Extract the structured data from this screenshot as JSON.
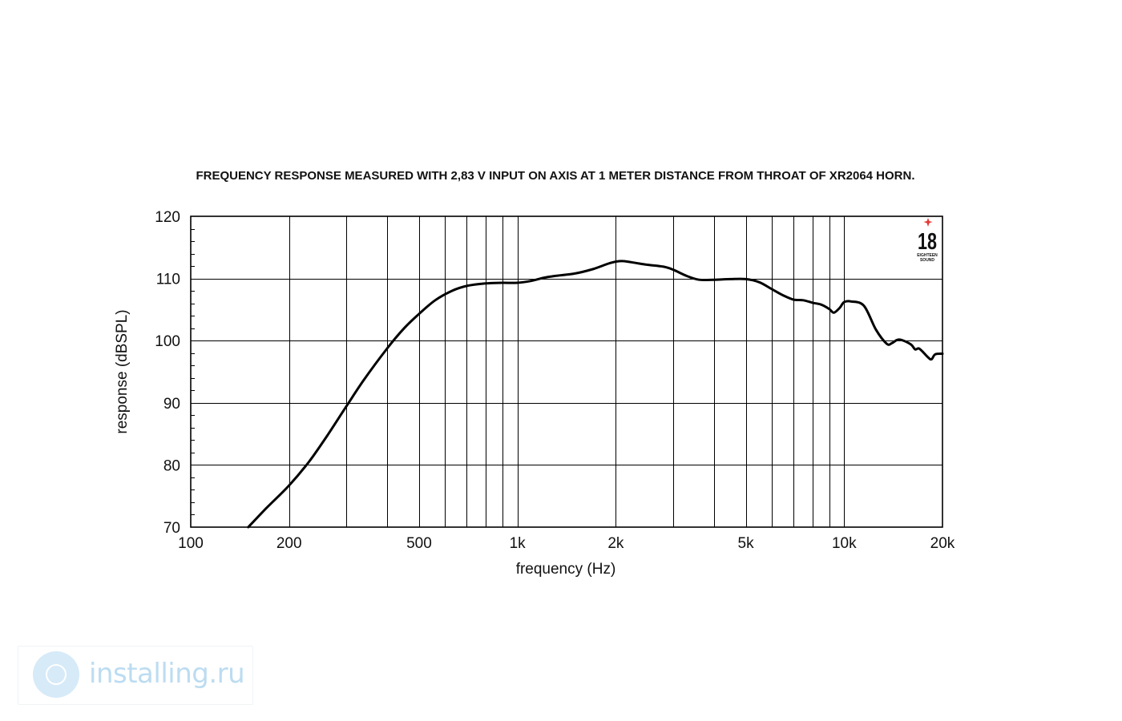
{
  "chart_data": {
    "type": "line",
    "title": "FREQUENCY RESPONSE MEASURED WITH 2,83 V INPUT ON AXIS AT 1 METER DISTANCE FROM THROAT OF XR2064 HORN.",
    "xlabel": "frequency (Hz)",
    "ylabel": "response (dBSPL)",
    "x_scale": "log",
    "xlim": [
      100,
      20000
    ],
    "ylim": [
      70,
      120
    ],
    "grid": true,
    "x_ticks": [
      {
        "value": 100,
        "label": "100"
      },
      {
        "value": 200,
        "label": "200"
      },
      {
        "value": 500,
        "label": "500"
      },
      {
        "value": 1000,
        "label": "1k"
      },
      {
        "value": 2000,
        "label": "2k"
      },
      {
        "value": 5000,
        "label": "5k"
      },
      {
        "value": 10000,
        "label": "10k"
      },
      {
        "value": 20000,
        "label": "20k"
      }
    ],
    "y_ticks": [
      {
        "value": 70,
        "label": "70"
      },
      {
        "value": 80,
        "label": "80"
      },
      {
        "value": 90,
        "label": "90"
      },
      {
        "value": 100,
        "label": "100"
      },
      {
        "value": 110,
        "label": "110"
      },
      {
        "value": 120,
        "label": "120"
      }
    ],
    "x_gridlines": [
      200,
      300,
      400,
      500,
      600,
      700,
      800,
      900,
      1000,
      2000,
      3000,
      4000,
      5000,
      6000,
      7000,
      8000,
      9000,
      10000
    ],
    "series": [
      {
        "color": "#000000",
        "x": [
          150,
          170,
          200,
          230,
          260,
          300,
          340,
          400,
          450,
          500,
          560,
          630,
          700,
          800,
          900,
          1000,
          1100,
          1200,
          1300,
          1500,
          1700,
          1900,
          2000,
          2100,
          2300,
          2500,
          2800,
          3000,
          3300,
          3600,
          4000,
          4500,
          5000,
          5500,
          6000,
          6500,
          7000,
          7500,
          8000,
          8500,
          9000,
          9300,
          9700,
          10000,
          10500,
          11500,
          12500,
          13500,
          14000,
          14500,
          15000,
          16000,
          16500,
          17000,
          18000,
          18500,
          19000,
          20000
        ],
        "y": [
          70,
          73,
          76.7,
          80.5,
          84.5,
          89.5,
          93.8,
          98.8,
          102,
          104.3,
          106.5,
          108,
          108.8,
          109.2,
          109.3,
          109.3,
          109.6,
          110.1,
          110.4,
          110.8,
          111.5,
          112.4,
          112.7,
          112.8,
          112.5,
          112.2,
          111.9,
          111.4,
          110.4,
          109.8,
          109.8,
          109.9,
          109.9,
          109.4,
          108.3,
          107.3,
          106.6,
          106.5,
          106.1,
          105.8,
          105.1,
          104.5,
          105.3,
          106.2,
          106.3,
          105.6,
          101.8,
          99.5,
          99.6,
          100.1,
          100.1,
          99.4,
          98.6,
          98.7,
          97.4,
          97,
          97.8,
          97.9
        ]
      }
    ]
  },
  "logo": {
    "number": "18",
    "line1": "EIGHTEEN",
    "line2": "SOUND",
    "star_color": "#e53935"
  },
  "watermark": {
    "text": "installing.ru",
    "color": "#bcdcf1"
  }
}
